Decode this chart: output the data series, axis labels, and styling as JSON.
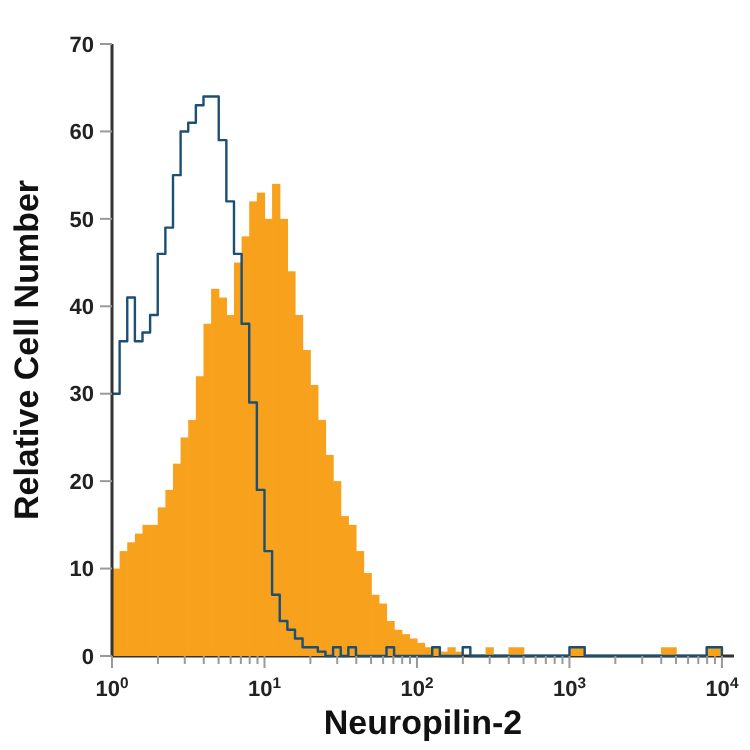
{
  "chart_data": {
    "type": "histogram",
    "xlabel": "Neuropilin-2",
    "ylabel": "Relative Cell Number",
    "log": "x",
    "grid": false,
    "xlim": [
      1,
      12000
    ],
    "ylim": [
      0,
      70
    ],
    "xticks": [
      {
        "value": 1,
        "label": "10$^{0}$"
      },
      {
        "value": 2,
        "label": null
      },
      {
        "value": 3,
        "label": null
      },
      {
        "value": 4,
        "label": null
      },
      {
        "value": 5,
        "label": null
      },
      {
        "value": 6,
        "label": null
      },
      {
        "value": 7,
        "label": null
      },
      {
        "value": 8,
        "label": null
      },
      {
        "value": 9,
        "label": null
      },
      {
        "value": 10,
        "label": "10$^{1}$"
      },
      {
        "value": 20,
        "label": null
      },
      {
        "value": 30,
        "label": null
      },
      {
        "value": 40,
        "label": null
      },
      {
        "value": 50,
        "label": null
      },
      {
        "value": 60,
        "label": null
      },
      {
        "value": 70,
        "label": null
      },
      {
        "value": 80,
        "label": null
      },
      {
        "value": 90,
        "label": null
      },
      {
        "value": 100,
        "label": "10$^{2}$"
      },
      {
        "value": 200,
        "label": null
      },
      {
        "value": 300,
        "label": null
      },
      {
        "value": 400,
        "label": null
      },
      {
        "value": 500,
        "label": null
      },
      {
        "value": 600,
        "label": null
      },
      {
        "value": 700,
        "label": null
      },
      {
        "value": 800,
        "label": null
      },
      {
        "value": 900,
        "label": null
      },
      {
        "value": 1000,
        "label": "10$^{3}$"
      },
      {
        "value": 2000,
        "label": null
      },
      {
        "value": 3000,
        "label": null
      },
      {
        "value": 4000,
        "label": null
      },
      {
        "value": 5000,
        "label": null
      },
      {
        "value": 6000,
        "label": null
      },
      {
        "value": 7000,
        "label": null
      },
      {
        "value": 8000,
        "label": null
      },
      {
        "value": 9000,
        "label": null
      },
      {
        "value": 10000,
        "label": "10$^{4}$"
      }
    ],
    "yticks": [
      0,
      10,
      20,
      30,
      40,
      50,
      60,
      70
    ],
    "bins": [
      1,
      1.122,
      1.259,
      1.413,
      1.585,
      1.778,
      1.995,
      2.239,
      2.512,
      2.818,
      3.162,
      3.548,
      3.981,
      4.467,
      5.012,
      5.623,
      6.31,
      7.079,
      7.943,
      8.913,
      10,
      11.22,
      12.59,
      14.13,
      15.85,
      17.78,
      19.95,
      22.39,
      25.12,
      28.18,
      31.62,
      35.48,
      39.81,
      44.67,
      50.12,
      56.23,
      63.1,
      70.79,
      79.43,
      89.13,
      100,
      112.2,
      125.9,
      141.3,
      158.5,
      177.8,
      199.5,
      281.8,
      316.2,
      398.1,
      501.2,
      1000,
      1259,
      3981,
      5012,
      7943,
      10000
    ],
    "series": [
      {
        "color": "#f7a11c",
        "values": [
          10,
          12,
          13,
          14,
          15,
          15,
          17,
          19,
          22,
          25,
          27,
          32,
          38,
          42,
          41,
          39,
          45,
          48,
          52,
          53,
          50,
          54,
          50,
          44,
          39,
          35,
          31,
          27,
          23,
          20,
          16,
          15,
          12,
          9.5,
          7,
          6,
          4,
          3,
          2.5,
          2,
          1.5,
          1,
          1,
          0.5,
          1,
          0.5,
          0,
          1,
          0,
          1,
          0,
          1,
          0,
          1,
          0,
          1
        ]
      },
      {
        "type": "step",
        "color": "#1d4f73",
        "x": [
          1,
          1.122,
          1.259,
          1.413,
          1.585,
          1.778,
          1.995,
          2.239,
          2.512,
          2.818,
          3.162,
          3.548,
          3.981,
          4.467,
          5.012,
          5.623,
          6.31,
          7.079,
          7.943,
          8.913,
          10,
          11.22,
          12.59,
          14.13,
          15.85,
          17.78,
          19.95,
          22.39,
          25.12,
          28.18,
          31.62,
          35.48,
          39.81,
          44.67,
          50.12,
          56.23,
          63.1,
          70.79,
          79.43,
          89.13,
          100,
          112.2,
          125.9,
          141.3,
          158.5,
          177.8,
          199.5,
          223.9,
          251.2,
          281.8,
          316.2,
          398.1,
          501.2,
          631,
          794.3,
          1000,
          1259,
          1585,
          1995,
          2512,
          3162,
          3981,
          5012,
          6310,
          7943,
          10000
        ],
        "values": [
          30,
          36,
          41,
          36,
          37,
          39,
          46,
          49,
          55,
          60,
          61,
          63,
          64,
          64,
          59,
          52,
          46,
          38,
          29,
          19,
          12,
          7,
          4,
          3,
          2,
          1,
          1,
          0.5,
          0,
          1,
          0,
          1,
          0,
          0,
          0,
          0,
          1,
          0,
          0,
          0,
          0,
          0,
          1,
          0,
          0,
          0,
          1,
          0,
          0,
          0,
          0,
          0,
          0,
          0,
          0,
          1,
          0,
          0,
          0,
          0,
          0,
          0,
          0,
          0,
          1,
          0
        ]
      }
    ]
  }
}
